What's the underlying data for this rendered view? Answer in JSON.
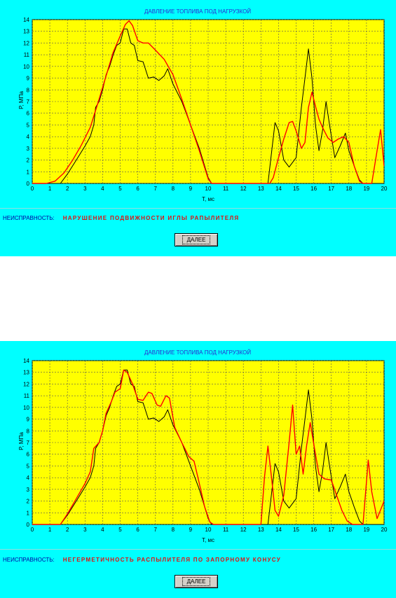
{
  "colors": {
    "panel_bg": "#00ffff",
    "plot_bg": "#ffff00",
    "grid": "#555555",
    "measured_line": "#000000",
    "model_line": "#ff0000",
    "title_text": "#2a2ad0",
    "fault_label_text": "#0000a0",
    "fault_value_text": "#e01010"
  },
  "panels": [
    {
      "fault_label": "НЕИСПРАВНОСТЬ:",
      "fault_value": "НАРУШЕНИЕ ПОДВИЖНОСТИ ИГЛЫ РАПЫЛИТЕЛЯ",
      "button_label": "ДАЛЕЕ"
    },
    {
      "fault_label": "НЕИСПРАВНОСТЬ:",
      "fault_value": "НЕГЕРМЕТИЧНОСТЬ РАСПЫЛИТЕЛЯ ПО ЗАПОРНОМУ КОНУСУ",
      "button_label": "ДАЛЕЕ"
    }
  ],
  "chart_data": [
    {
      "type": "line",
      "title": "ДАВЛЕНИЕ ТОПЛИВА ПОД НАГРУЗКОЙ",
      "xlabel": "T, мс",
      "ylabel": "P, МПа",
      "xlim": [
        0,
        20
      ],
      "ylim": [
        0,
        14
      ],
      "xticks": [
        0,
        1,
        2,
        3,
        4,
        5,
        6,
        7,
        8,
        9,
        10,
        11,
        12,
        13,
        14,
        15,
        16,
        17,
        18,
        19,
        20
      ],
      "yticks": [
        0,
        1,
        2,
        3,
        4,
        5,
        6,
        7,
        8,
        9,
        10,
        11,
        12,
        13,
        14
      ],
      "grid": true,
      "legend": "none",
      "series": [
        {
          "color": "#000000",
          "points": [
            [
              0,
              0
            ],
            [
              1.6,
              0
            ],
            [
              2,
              0.8
            ],
            [
              2.5,
              2
            ],
            [
              3,
              3.2
            ],
            [
              3.3,
              4
            ],
            [
              3.5,
              5
            ],
            [
              3.6,
              6.5
            ],
            [
              3.8,
              7
            ],
            [
              4,
              8
            ],
            [
              4.2,
              9.3
            ],
            [
              4.4,
              10
            ],
            [
              4.6,
              11
            ],
            [
              4.8,
              11.8
            ],
            [
              5,
              12
            ],
            [
              5.2,
              13.2
            ],
            [
              5.4,
              13.2
            ],
            [
              5.6,
              12
            ],
            [
              5.8,
              11.8
            ],
            [
              6,
              10.5
            ],
            [
              6.3,
              10.4
            ],
            [
              6.6,
              9
            ],
            [
              6.9,
              9.1
            ],
            [
              7.2,
              8.8
            ],
            [
              7.5,
              9.2
            ],
            [
              7.7,
              9.8
            ],
            [
              8,
              8.5
            ],
            [
              8.5,
              7
            ],
            [
              9,
              5
            ],
            [
              9.5,
              3
            ],
            [
              10,
              0.5
            ],
            [
              10.2,
              0
            ],
            [
              13.4,
              0
            ],
            [
              13.8,
              5.2
            ],
            [
              14,
              4.5
            ],
            [
              14.3,
              2
            ],
            [
              14.6,
              1.4
            ],
            [
              15,
              2.2
            ],
            [
              15.3,
              6.5
            ],
            [
              15.5,
              9
            ],
            [
              15.7,
              11.5
            ],
            [
              15.9,
              9
            ],
            [
              16.1,
              5
            ],
            [
              16.3,
              2.8
            ],
            [
              16.5,
              4.5
            ],
            [
              16.7,
              7
            ],
            [
              16.9,
              5
            ],
            [
              17.2,
              2.2
            ],
            [
              17.5,
              3.2
            ],
            [
              17.8,
              4.3
            ],
            [
              18,
              2.8
            ],
            [
              18.3,
              1.5
            ],
            [
              18.6,
              0.3
            ],
            [
              18.8,
              0
            ],
            [
              20,
              0
            ]
          ]
        },
        {
          "color": "#ff0000",
          "points": [
            [
              0,
              0
            ],
            [
              0.8,
              0
            ],
            [
              1.3,
              0.2
            ],
            [
              1.8,
              0.9
            ],
            [
              2.3,
              2
            ],
            [
              2.8,
              3.3
            ],
            [
              3.3,
              4.8
            ],
            [
              3.8,
              7.2
            ],
            [
              4.2,
              9.2
            ],
            [
              4.6,
              11.2
            ],
            [
              5,
              12.6
            ],
            [
              5.3,
              13.6
            ],
            [
              5.5,
              13.9
            ],
            [
              5.7,
              13.5
            ],
            [
              6,
              12.2
            ],
            [
              6.3,
              12
            ],
            [
              6.6,
              12
            ],
            [
              7,
              11.4
            ],
            [
              7.5,
              10.6
            ],
            [
              8,
              9.3
            ],
            [
              8.5,
              7.2
            ],
            [
              9,
              5
            ],
            [
              9.5,
              2.8
            ],
            [
              10,
              0.4
            ],
            [
              10.2,
              0
            ],
            [
              13.5,
              0
            ],
            [
              13.7,
              0.5
            ],
            [
              14,
              2.2
            ],
            [
              14.3,
              3.8
            ],
            [
              14.6,
              5.2
            ],
            [
              14.8,
              5.3
            ],
            [
              15,
              4.5
            ],
            [
              15.3,
              3
            ],
            [
              15.5,
              3.5
            ],
            [
              15.7,
              6.5
            ],
            [
              15.9,
              7.8
            ],
            [
              16.1,
              6.6
            ],
            [
              16.3,
              5.5
            ],
            [
              16.5,
              4.8
            ],
            [
              16.8,
              3.9
            ],
            [
              17.1,
              3.5
            ],
            [
              17.4,
              3.8
            ],
            [
              17.7,
              4
            ],
            [
              18,
              3.5
            ],
            [
              18.3,
              1.5
            ],
            [
              18.6,
              0.2
            ],
            [
              18.8,
              0
            ],
            [
              19.3,
              0
            ],
            [
              19.6,
              2.8
            ],
            [
              19.8,
              4.6
            ],
            [
              20,
              1.5
            ]
          ]
        }
      ]
    },
    {
      "type": "line",
      "title": "ДАВЛЕНИЕ ТОПЛИВА ПОД НАГРУЗКОЙ",
      "xlabel": "T, мс",
      "ylabel": "P, МПа",
      "xlim": [
        0,
        20
      ],
      "ylim": [
        0,
        14
      ],
      "xticks": [
        0,
        1,
        2,
        3,
        4,
        5,
        6,
        7,
        8,
        9,
        10,
        11,
        12,
        13,
        14,
        15,
        16,
        17,
        18,
        19,
        20
      ],
      "yticks": [
        0,
        1,
        2,
        3,
        4,
        5,
        6,
        7,
        8,
        9,
        10,
        11,
        12,
        13,
        14
      ],
      "grid": true,
      "legend": "none",
      "series": [
        {
          "color": "#000000",
          "points": [
            [
              0,
              0
            ],
            [
              1.6,
              0
            ],
            [
              2,
              0.8
            ],
            [
              2.5,
              2
            ],
            [
              3,
              3.2
            ],
            [
              3.3,
              4
            ],
            [
              3.5,
              5
            ],
            [
              3.6,
              6.5
            ],
            [
              3.8,
              7
            ],
            [
              4,
              8
            ],
            [
              4.2,
              9.3
            ],
            [
              4.4,
              10
            ],
            [
              4.6,
              11
            ],
            [
              4.8,
              11.8
            ],
            [
              5,
              12
            ],
            [
              5.2,
              13.2
            ],
            [
              5.4,
              13.2
            ],
            [
              5.6,
              12
            ],
            [
              5.8,
              11.8
            ],
            [
              6,
              10.5
            ],
            [
              6.3,
              10.4
            ],
            [
              6.6,
              9
            ],
            [
              6.9,
              9.1
            ],
            [
              7.2,
              8.8
            ],
            [
              7.5,
              9.2
            ],
            [
              7.7,
              9.8
            ],
            [
              8,
              8.5
            ],
            [
              8.5,
              7
            ],
            [
              9,
              5
            ],
            [
              9.5,
              3
            ],
            [
              10,
              0.5
            ],
            [
              10.2,
              0
            ],
            [
              13.4,
              0
            ],
            [
              13.8,
              5.2
            ],
            [
              14,
              4.5
            ],
            [
              14.3,
              2
            ],
            [
              14.6,
              1.4
            ],
            [
              15,
              2.2
            ],
            [
              15.3,
              6.5
            ],
            [
              15.5,
              9
            ],
            [
              15.7,
              11.5
            ],
            [
              15.9,
              9
            ],
            [
              16.1,
              5
            ],
            [
              16.3,
              2.8
            ],
            [
              16.5,
              4.5
            ],
            [
              16.7,
              7
            ],
            [
              16.9,
              5
            ],
            [
              17.2,
              2.2
            ],
            [
              17.5,
              3.2
            ],
            [
              17.8,
              4.3
            ],
            [
              18,
              2.8
            ],
            [
              18.3,
              1.5
            ],
            [
              18.6,
              0.3
            ],
            [
              18.8,
              0
            ],
            [
              20,
              0
            ]
          ]
        },
        {
          "color": "#ff0000",
          "points": [
            [
              0,
              0
            ],
            [
              1.6,
              0
            ],
            [
              2,
              0.9
            ],
            [
              2.5,
              2.2
            ],
            [
              3,
              3.5
            ],
            [
              3.3,
              4.5
            ],
            [
              3.5,
              6.5
            ],
            [
              3.8,
              7
            ],
            [
              4,
              8
            ],
            [
              4.2,
              9.5
            ],
            [
              4.5,
              10.5
            ],
            [
              4.7,
              11.3
            ],
            [
              5,
              11.6
            ],
            [
              5.2,
              13.2
            ],
            [
              5.4,
              13
            ],
            [
              5.7,
              12
            ],
            [
              6,
              10.7
            ],
            [
              6.3,
              10.6
            ],
            [
              6.6,
              11.3
            ],
            [
              6.8,
              11.2
            ],
            [
              7.1,
              10.2
            ],
            [
              7.3,
              10.1
            ],
            [
              7.6,
              11
            ],
            [
              7.8,
              10.8
            ],
            [
              8.1,
              8.3
            ],
            [
              8.5,
              7
            ],
            [
              8.9,
              5.8
            ],
            [
              9.2,
              5.4
            ],
            [
              9.5,
              3.5
            ],
            [
              9.8,
              1.5
            ],
            [
              10.1,
              0.2
            ],
            [
              10.3,
              0
            ],
            [
              13,
              0
            ],
            [
              13.2,
              4
            ],
            [
              13.4,
              6.7
            ],
            [
              13.6,
              4
            ],
            [
              13.8,
              1.2
            ],
            [
              14,
              0.7
            ],
            [
              14.3,
              2.5
            ],
            [
              14.6,
              7
            ],
            [
              14.8,
              10.2
            ],
            [
              15,
              6
            ],
            [
              15.2,
              6.7
            ],
            [
              15.4,
              4.3
            ],
            [
              15.6,
              6.8
            ],
            [
              15.8,
              8.7
            ],
            [
              16.1,
              6
            ],
            [
              16.3,
              4.3
            ],
            [
              16.6,
              3.9
            ],
            [
              17,
              3.8
            ],
            [
              17.3,
              2.5
            ],
            [
              17.6,
              1.2
            ],
            [
              17.9,
              0.3
            ],
            [
              18.2,
              0
            ],
            [
              18.8,
              0
            ],
            [
              19.1,
              5.5
            ],
            [
              19.3,
              2.8
            ],
            [
              19.6,
              0.5
            ],
            [
              20,
              2
            ]
          ]
        }
      ]
    }
  ]
}
